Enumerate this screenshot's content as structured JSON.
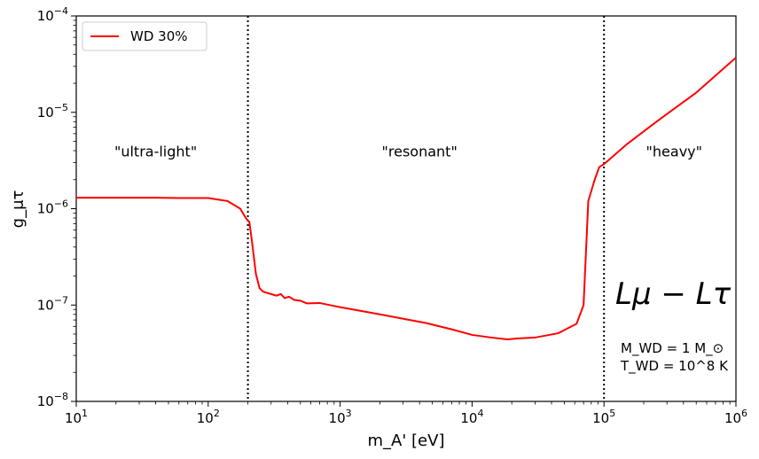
{
  "chart_data": {
    "type": "line",
    "xscale": "log",
    "yscale": "log",
    "xlim": [
      10,
      1000000
    ],
    "ylim": [
      1e-08,
      0.0001
    ],
    "xlabel": "m_A' [eV]",
    "ylabel": "g_μτ",
    "x_tick_labels": [
      {
        "base": "10",
        "exp": "1"
      },
      {
        "base": "10",
        "exp": "2"
      },
      {
        "base": "10",
        "exp": "3"
      },
      {
        "base": "10",
        "exp": "4"
      },
      {
        "base": "10",
        "exp": "5"
      },
      {
        "base": "10",
        "exp": "6"
      }
    ],
    "y_tick_labels": [
      {
        "base": "10",
        "exp": "−8"
      },
      {
        "base": "10",
        "exp": "−7"
      },
      {
        "base": "10",
        "exp": "−6"
      },
      {
        "base": "10",
        "exp": "−5"
      },
      {
        "base": "10",
        "exp": "−4"
      }
    ],
    "series": [
      {
        "name": "WD 30%",
        "color": "#ff0000",
        "points": [
          [
            10,
            1.3e-06
          ],
          [
            20,
            1.3e-06
          ],
          [
            40,
            1.3e-06
          ],
          [
            60,
            1.29e-06
          ],
          [
            100,
            1.29e-06
          ],
          [
            140,
            1.2e-06
          ],
          [
            175,
            1e-06
          ],
          [
            195,
            7.8e-07
          ],
          [
            205,
            7.3e-07
          ],
          [
            215,
            4.5e-07
          ],
          [
            230,
            2.1e-07
          ],
          [
            245,
            1.5e-07
          ],
          [
            260,
            1.38e-07
          ],
          [
            300,
            1.3e-07
          ],
          [
            330,
            1.25e-07
          ],
          [
            355,
            1.3e-07
          ],
          [
            380,
            1.18e-07
          ],
          [
            410,
            1.22e-07
          ],
          [
            450,
            1.13e-07
          ],
          [
            500,
            1.11e-07
          ],
          [
            560,
            1.04e-07
          ],
          [
            700,
            1.05e-07
          ],
          [
            1000,
            9.5e-08
          ],
          [
            2000,
            8e-08
          ],
          [
            4500,
            6.5e-08
          ],
          [
            7000,
            5.6e-08
          ],
          [
            10000,
            4.9e-08
          ],
          [
            14000,
            4.6e-08
          ],
          [
            18500,
            4.4e-08
          ],
          [
            22000,
            4.5e-08
          ],
          [
            30000,
            4.6e-08
          ],
          [
            45000,
            5.1e-08
          ],
          [
            62000,
            6.4e-08
          ],
          [
            70000,
            1e-07
          ],
          [
            76000,
            1.2e-06
          ],
          [
            85000,
            2e-06
          ],
          [
            92000,
            2.7e-06
          ],
          [
            100000,
            2.9e-06
          ],
          [
            150000,
            4.7e-06
          ],
          [
            250000,
            8e-06
          ],
          [
            500000,
            1.6e-05
          ],
          [
            1000000,
            3.7e-05
          ]
        ]
      }
    ],
    "vlines": [
      200,
      100000
    ],
    "regions": [
      {
        "label": "\"ultra-light\"",
        "x": 40,
        "y": 3.5e-06
      },
      {
        "label": "\"resonant\"",
        "x": 4000,
        "y": 3.5e-06
      },
      {
        "label": "\"heavy\"",
        "x": 340000,
        "y": 3.5e-06
      }
    ],
    "legend": {
      "position": "top-left",
      "entries": [
        "WD 30%"
      ]
    }
  },
  "annotations": {
    "model": "Lμ − Lτ",
    "mass": "M_WD = 1 M_⊙",
    "temperature": "T_WD = 10^8 K"
  }
}
